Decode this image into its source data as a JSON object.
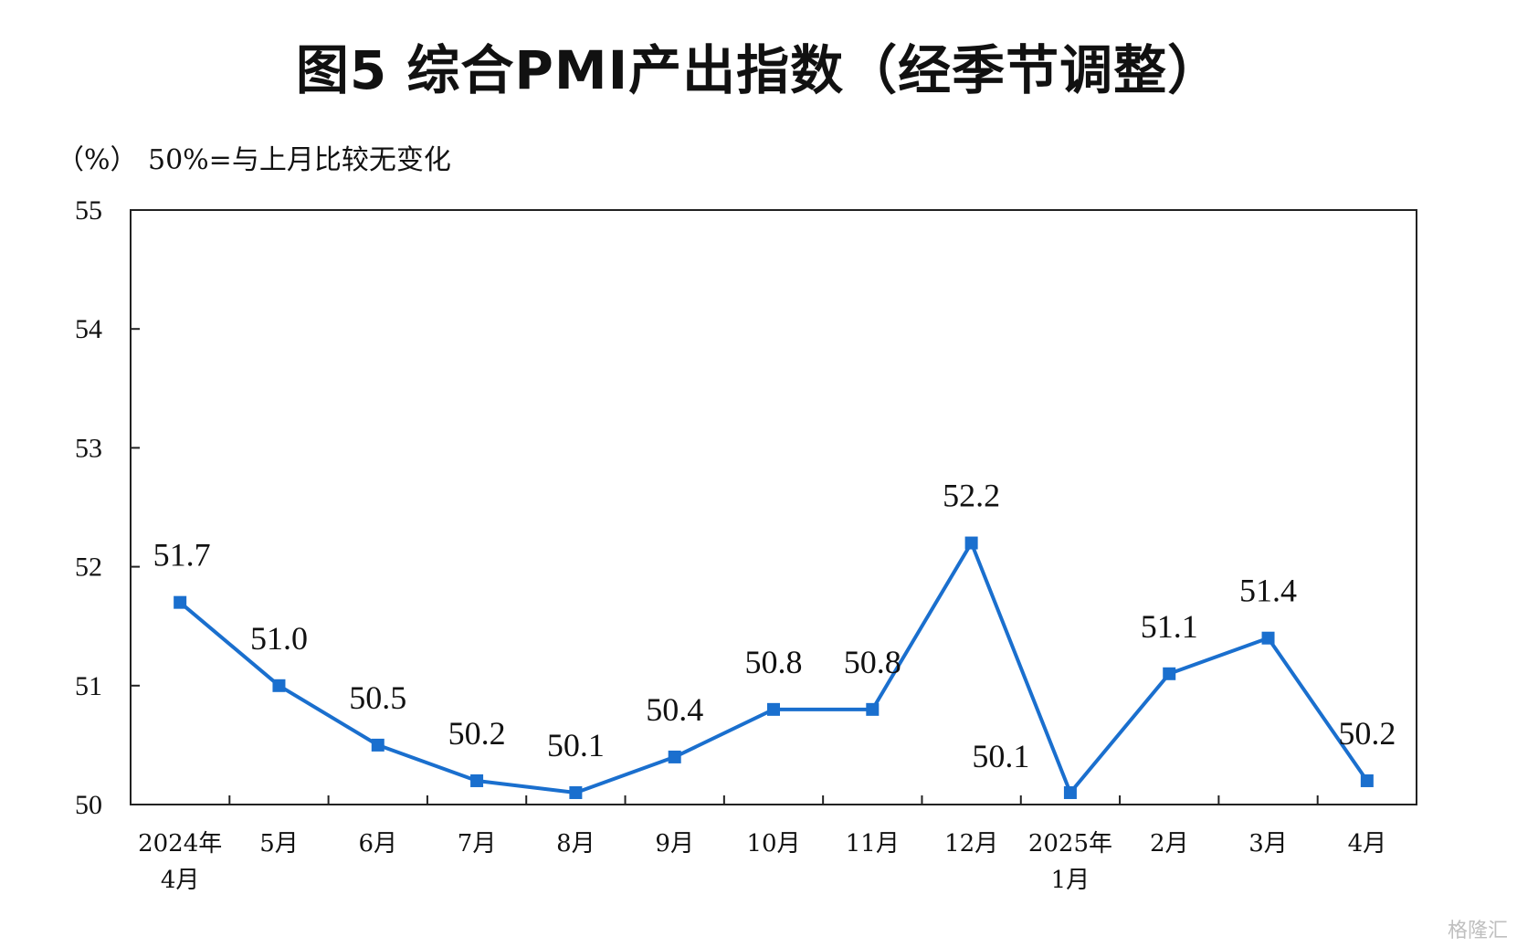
{
  "title": "图5  综合PMI产出指数（经季节调整）",
  "unit_label": "（%）",
  "reference_note": "50%=与上月比较无变化",
  "watermark": "格隆汇",
  "colors": {
    "series": "#1a6fce",
    "axis": "#222222"
  },
  "chart_data": {
    "type": "line",
    "title": "图5  综合PMI产出指数（经季节调整）",
    "xlabel": "",
    "ylabel": "（%）",
    "ylim": [
      50,
      55
    ],
    "yticks": [
      "50",
      "51",
      "52",
      "53",
      "54",
      "55"
    ],
    "categories": [
      [
        "2024年",
        "4月"
      ],
      [
        "5月"
      ],
      [
        "6月"
      ],
      [
        "7月"
      ],
      [
        "8月"
      ],
      [
        "9月"
      ],
      [
        "10月"
      ],
      [
        "11月"
      ],
      [
        "12月"
      ],
      [
        "2025年",
        "1月"
      ],
      [
        "2月"
      ],
      [
        "3月"
      ],
      [
        "4月"
      ]
    ],
    "series": [
      {
        "values": [
          51.7,
          51.0,
          50.5,
          50.2,
          50.1,
          50.4,
          50.8,
          50.8,
          52.2,
          50.1,
          51.1,
          51.4,
          50.2
        ],
        "labels": [
          "51.7",
          "51.0",
          "50.5",
          "50.2",
          "50.1",
          "50.4",
          "50.8",
          "50.8",
          "52.2",
          "50.1",
          "51.1",
          "51.4",
          "50.2"
        ],
        "marker": "square"
      }
    ],
    "grid": false,
    "legend": "none"
  }
}
